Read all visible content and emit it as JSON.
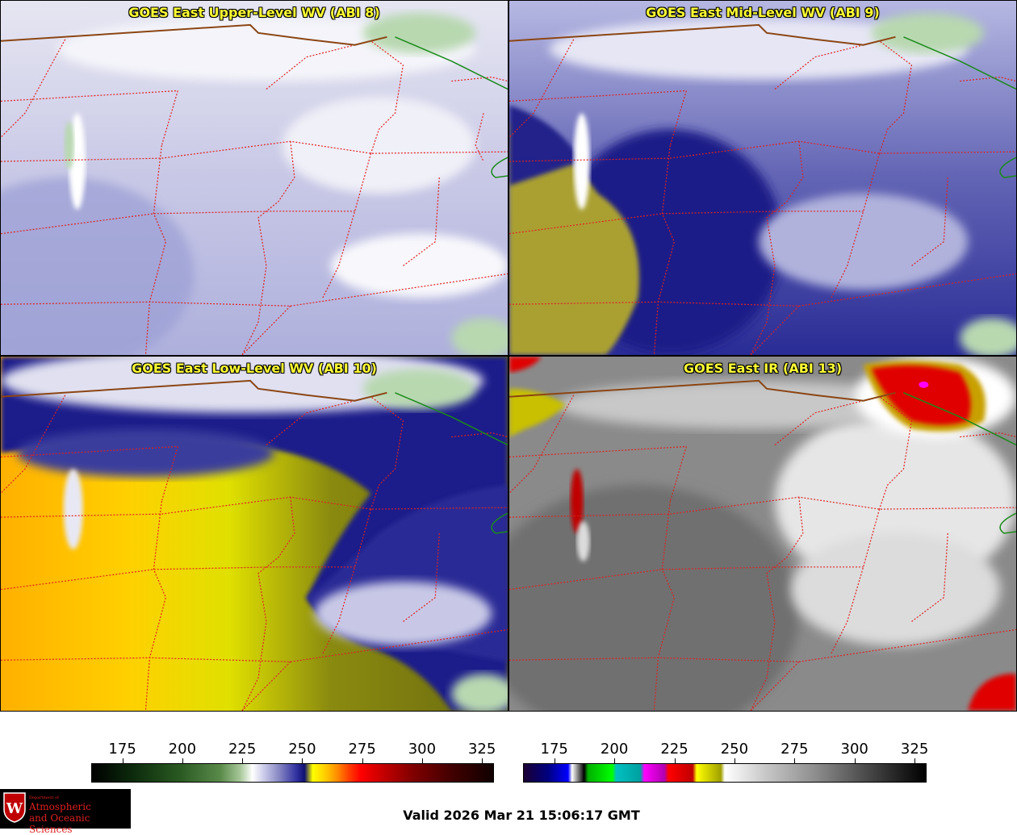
{
  "panels": {
    "upper": {
      "title": "GOES East Upper-Level WV (ABI 8)"
    },
    "mid": {
      "title": "GOES East Mid-Level WV (ABI 9)"
    },
    "low": {
      "title": "GOES East Low-Level WV (ABI 10)"
    },
    "ir": {
      "title": "GOES East IR (ABI 13)"
    }
  },
  "colorbars": {
    "wv": {
      "ticks": [
        "175",
        "200",
        "225",
        "250",
        "275",
        "300",
        "325"
      ],
      "min": 162,
      "max": 330
    },
    "ir": {
      "ticks": [
        "175",
        "200",
        "225",
        "250",
        "275",
        "300",
        "325"
      ],
      "min": 162,
      "max": 330
    }
  },
  "logo": {
    "line1": "Department of",
    "line2": "Atmospheric",
    "line3": "and Oceanic Sciences"
  },
  "valid_time": "Valid 2026 Mar 21 15:06:17 GMT",
  "colors": {
    "title_text": "#ffff33",
    "state_border": "#e02020",
    "country_border": "#8b4513",
    "lake_outline": "#1a8a1a"
  }
}
